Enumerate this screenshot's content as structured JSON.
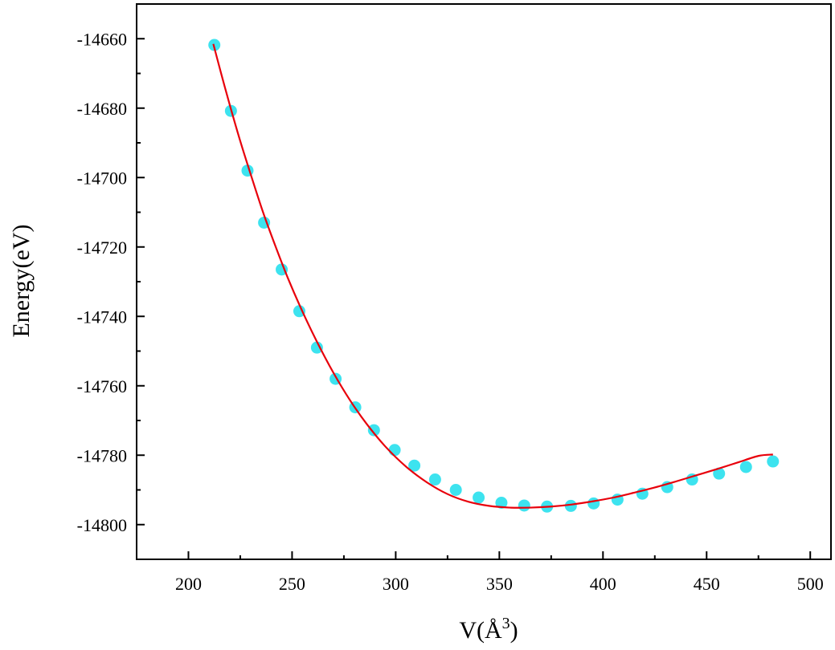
{
  "chart_data": {
    "type": "scatter",
    "title": "",
    "xlabel": "V(Å",
    "xlabel_sup": "3",
    "xlabel_close": ")",
    "ylabel": "Energy(eV)",
    "xlim": [
      175,
      510
    ],
    "ylim": [
      -14810,
      -14650
    ],
    "x_ticks": [
      200,
      250,
      300,
      350,
      400,
      450,
      500
    ],
    "y_ticks": [
      -14660,
      -14680,
      -14700,
      -14720,
      -14740,
      -14760,
      -14780,
      -14800
    ],
    "grid": false,
    "colors": {
      "points": "#3de3ef",
      "fit": "#e8000b",
      "axis": "#000000"
    },
    "series": [
      {
        "kind": "points",
        "x": [
          212.5,
          220.5,
          228.5,
          236.5,
          245,
          253.5,
          262,
          271,
          280.5,
          289.5,
          299.5,
          309,
          319,
          329,
          340,
          351,
          362,
          373,
          384.5,
          395.5,
          407,
          419,
          431,
          443,
          456,
          469,
          482
        ],
        "y": [
          -14661.8,
          -14680.8,
          -14698,
          -14713,
          -14726.5,
          -14738.5,
          -14749,
          -14758,
          -14766.2,
          -14772.8,
          -14778.5,
          -14783,
          -14787,
          -14790,
          -14792.2,
          -14793.7,
          -14794.5,
          -14794.8,
          -14794.6,
          -14793.9,
          -14792.8,
          -14791.1,
          -14789.2,
          -14787,
          -14785.3,
          -14783.4,
          -14781.8
        ]
      },
      {
        "kind": "fit",
        "x": [
          212,
          216,
          220,
          225,
          230,
          236,
          242,
          248,
          255,
          262,
          270,
          278,
          286,
          295,
          305,
          315,
          325,
          335,
          345,
          355,
          365,
          375,
          385,
          395,
          405,
          415,
          425,
          435,
          445,
          455,
          465,
          475,
          482
        ],
        "y": [
          -14661.5,
          -14670.5,
          -14679.2,
          -14689.5,
          -14699,
          -14710,
          -14719.8,
          -14729,
          -14738.6,
          -14747.3,
          -14756.3,
          -14764.2,
          -14771,
          -14777.5,
          -14783.3,
          -14787.8,
          -14791.2,
          -14793.4,
          -14794.6,
          -14795.1,
          -14795.1,
          -14794.8,
          -14794.2,
          -14793.3,
          -14792.2,
          -14790.8,
          -14789.3,
          -14787.6,
          -14785.8,
          -14784,
          -14782.1,
          -14780.2,
          -14779.8
        ]
      }
    ]
  }
}
